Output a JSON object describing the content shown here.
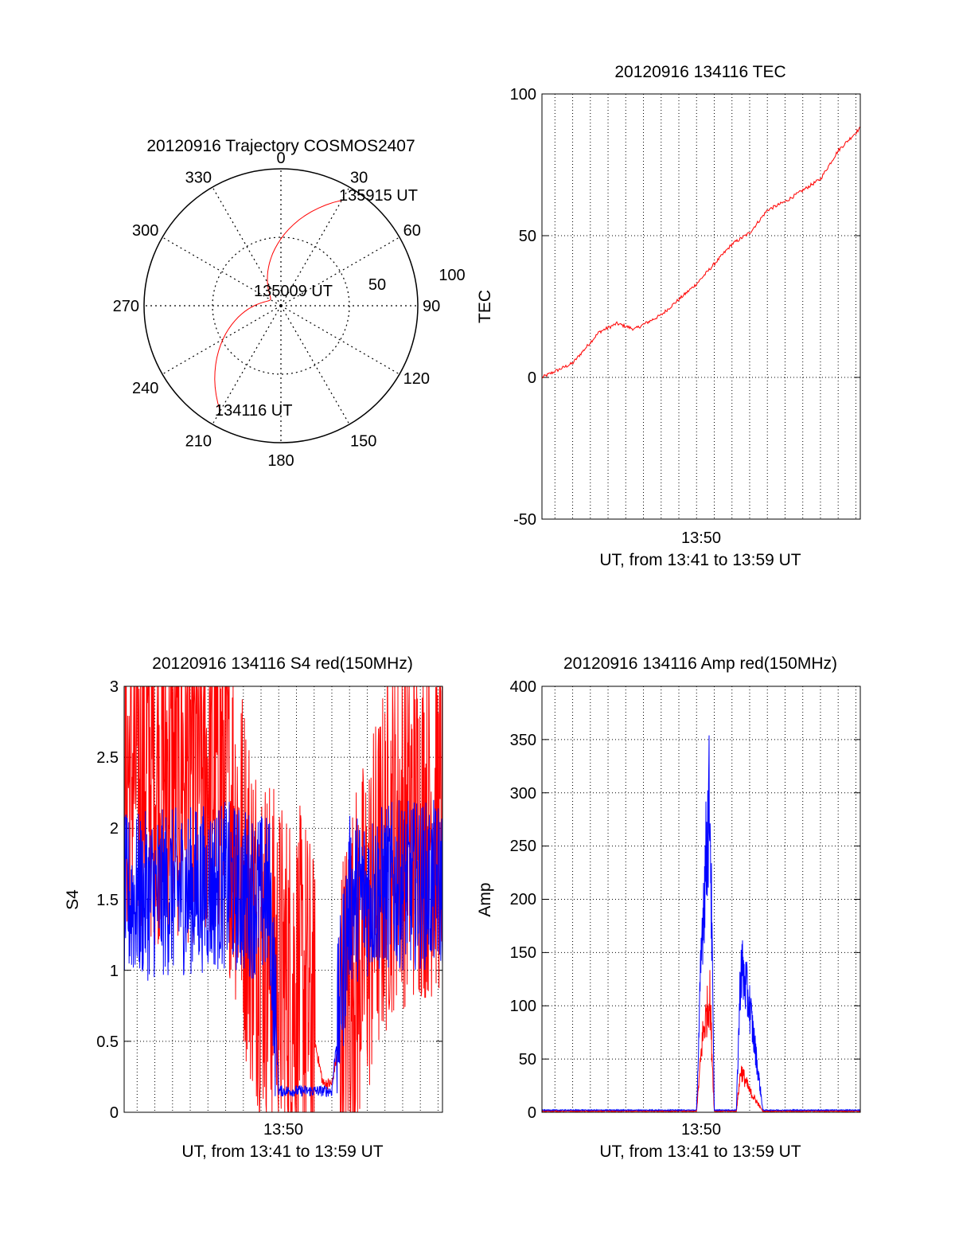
{
  "colors": {
    "red": "#ff0000",
    "blue": "#0000ff",
    "grid": "#000000",
    "background": "#ffffff"
  },
  "chart_data": [
    {
      "type": "polar",
      "title": "20120916 Trajectory COSMOS2407",
      "angle_labels": [
        "0",
        "30",
        "60",
        "90",
        "120",
        "150",
        "180",
        "210",
        "240",
        "270",
        "300",
        "330"
      ],
      "radial_labels": [
        "50",
        "100"
      ],
      "radial_grid_values": [
        50,
        100
      ],
      "track_color": "red",
      "series": [
        {
          "points": [
            {
              "time": "134116",
              "azimuth": 210,
              "elevation": 10
            },
            {
              "time": "135009",
              "azimuth": 300,
              "elevation": 82
            },
            {
              "time": "135915",
              "azimuth": 30,
              "elevation": 10
            }
          ]
        }
      ],
      "annotations": [
        "134116 UT",
        "135009 UT",
        "135915 UT"
      ]
    },
    {
      "type": "line",
      "title": "20120916 134116 TEC",
      "ylabel": "TEC",
      "xlabel": "UT, from 13:41 to 13:59 UT",
      "xtick_label": "13:50",
      "xlim": [
        "13:41:16",
        "13:59:15"
      ],
      "ylim": [
        -50,
        100
      ],
      "yticks": [
        "-50",
        "0",
        "50",
        "100"
      ],
      "grid": true,
      "series": [
        {
          "color": "red",
          "x": [
            "13:41:16",
            "13:43:00",
            "13:44:30",
            "13:45:30",
            "13:46:30",
            "13:48:00",
            "13:50:00",
            "13:51:00",
            "13:52:00",
            "13:53:00",
            "13:54:00",
            "13:55:00",
            "13:56:00",
            "13:57:00",
            "13:58:00",
            "13:59:15"
          ],
          "values": [
            0,
            5,
            16,
            19,
            17,
            22,
            33,
            40,
            47,
            51,
            59,
            62,
            66,
            70,
            80,
            88
          ]
        }
      ]
    },
    {
      "type": "line",
      "title": "20120916 134116 S4 red(150MHz)",
      "ylabel": "S4",
      "xlabel": "UT, from 13:41 to 13:59 UT",
      "xtick_label": "13:50",
      "xlim": [
        "13:41:16",
        "13:59:15"
      ],
      "ylim": [
        0,
        3
      ],
      "yticks": [
        "0",
        "0.5",
        "1",
        "1.5",
        "2",
        "2.5",
        "3"
      ],
      "grid": true,
      "series": [
        {
          "color": "red",
          "x": [
            "13:41:16",
            "13:44:00",
            "13:47:00",
            "13:48:30",
            "13:49:30",
            "13:50:00",
            "13:51:30",
            "13:52:30",
            "13:53:00",
            "13:54:00",
            "13:55:00",
            "13:56:30",
            "13:59:15"
          ],
          "values": [
            2.4,
            2.5,
            2.4,
            1.4,
            1.1,
            0.95,
            0.85,
            0.2,
            0.2,
            0.9,
            1.3,
            2.0,
            2.1
          ]
        },
        {
          "color": "blue",
          "x": [
            "13:41:16",
            "13:44:00",
            "13:47:00",
            "13:49:30",
            "13:50:00",
            "13:51:30",
            "13:52:30",
            "13:53:00",
            "13:54:00",
            "13:56:30",
            "13:59:15"
          ],
          "values": [
            1.5,
            1.55,
            1.6,
            1.5,
            0.15,
            0.15,
            0.15,
            0.15,
            1.5,
            1.6,
            1.6
          ]
        }
      ]
    },
    {
      "type": "line",
      "title": "20120916 134116 Amp red(150MHz)",
      "ylabel": "Amp",
      "xlabel": "UT, from 13:41 to 13:59 UT",
      "xtick_label": "13:50",
      "xlim": [
        "13:41:16",
        "13:59:15"
      ],
      "ylim": [
        0,
        400
      ],
      "yticks": [
        "0",
        "50",
        "100",
        "150",
        "200",
        "250",
        "300",
        "350",
        "400"
      ],
      "grid": true,
      "series": [
        {
          "color": "red",
          "x": [
            "13:41:16",
            "13:50:00",
            "13:50:20",
            "13:50:45",
            "13:51:00",
            "13:52:15",
            "13:52:30",
            "13:53:00",
            "13:53:45",
            "13:59:15"
          ],
          "values": [
            1,
            1,
            70,
            110,
            1,
            1,
            40,
            20,
            1,
            1
          ]
        },
        {
          "color": "blue",
          "x": [
            "13:41:16",
            "13:50:00",
            "13:50:20",
            "13:50:45",
            "13:51:00",
            "13:52:15",
            "13:52:30",
            "13:53:00",
            "13:53:45",
            "13:59:15"
          ],
          "values": [
            2,
            2,
            180,
            300,
            2,
            2,
            140,
            100,
            2,
            2
          ]
        }
      ]
    }
  ]
}
